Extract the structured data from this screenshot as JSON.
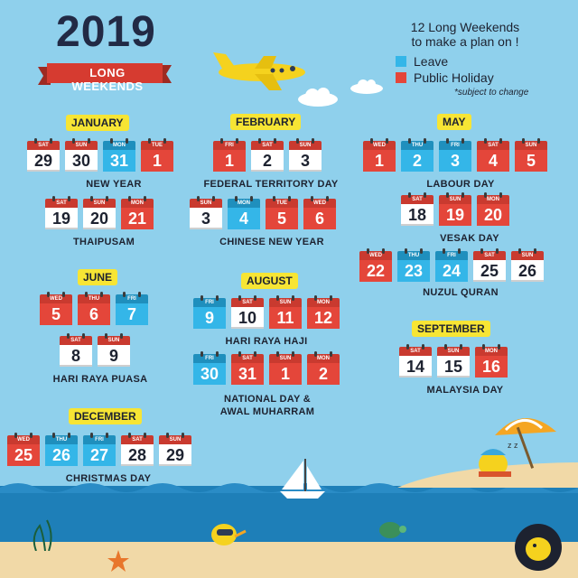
{
  "header": {
    "year": "2019",
    "subtitle": "LONG WEEKENDS"
  },
  "info": {
    "line1": "12 Long Weekends",
    "line2": "to make a plan on !",
    "legend_leave": "Leave",
    "legend_public": "Public Holiday",
    "note": "*subject to change"
  },
  "colors": {
    "leave": "#34b6e8",
    "public_holiday": "#e4463a",
    "weekend": "#ffffff",
    "month_label": "#f7e534"
  },
  "months": {
    "jan": "JANUARY",
    "feb": "FEBRUARY",
    "may": "MAY",
    "jun": "JUNE",
    "aug": "AUGUST",
    "sep": "SEPTEMBER",
    "dec": "DECEMBER"
  },
  "holidays": {
    "new_year": "NEW YEAR",
    "thaipusam": "THAIPUSAM",
    "federal": "FEDERAL TERRITORY DAY",
    "cny": "CHINESE NEW YEAR",
    "labour": "LABOUR DAY",
    "vesak": "VESAK DAY",
    "nuzul": "NUZUL QURAN",
    "hari_raya_puasa": "HARI RAYA PUASA",
    "hari_raya_haji": "HARI RAYA HAJI",
    "national_1": "NATIONAL DAY &",
    "national_2": "AWAL MUHARRAM",
    "malaysia": "MALAYSIA DAY",
    "christmas": "CHRISTMAS DAY"
  },
  "groups": {
    "g1": [
      {
        "d": "SAT",
        "n": "29",
        "t": "W"
      },
      {
        "d": "SUN",
        "n": "30",
        "t": "W"
      },
      {
        "d": "MON",
        "n": "31",
        "t": "L"
      },
      {
        "d": "TUE",
        "n": "1",
        "t": "P"
      }
    ],
    "g2": [
      {
        "d": "SAT",
        "n": "19",
        "t": "W"
      },
      {
        "d": "SUN",
        "n": "20",
        "t": "W"
      },
      {
        "d": "MON",
        "n": "21",
        "t": "P"
      }
    ],
    "g3": [
      {
        "d": "FRI",
        "n": "1",
        "t": "P"
      },
      {
        "d": "SAT",
        "n": "2",
        "t": "W"
      },
      {
        "d": "SUN",
        "n": "3",
        "t": "W"
      }
    ],
    "g4": [
      {
        "d": "SUN",
        "n": "3",
        "t": "W"
      },
      {
        "d": "MON",
        "n": "4",
        "t": "L"
      },
      {
        "d": "TUE",
        "n": "5",
        "t": "P"
      },
      {
        "d": "WED",
        "n": "6",
        "t": "P"
      }
    ],
    "g5": [
      {
        "d": "WED",
        "n": "1",
        "t": "P"
      },
      {
        "d": "THU",
        "n": "2",
        "t": "L"
      },
      {
        "d": "FRI",
        "n": "3",
        "t": "L"
      },
      {
        "d": "SAT",
        "n": "4",
        "t": "P"
      },
      {
        "d": "SUN",
        "n": "5",
        "t": "P"
      }
    ],
    "g6": [
      {
        "d": "SAT",
        "n": "18",
        "t": "W"
      },
      {
        "d": "SUN",
        "n": "19",
        "t": "P"
      },
      {
        "d": "MON",
        "n": "20",
        "t": "P"
      }
    ],
    "g7": [
      {
        "d": "WED",
        "n": "22",
        "t": "P"
      },
      {
        "d": "THU",
        "n": "23",
        "t": "L"
      },
      {
        "d": "FRI",
        "n": "24",
        "t": "L"
      },
      {
        "d": "SAT",
        "n": "25",
        "t": "W"
      },
      {
        "d": "SUN",
        "n": "26",
        "t": "W"
      }
    ],
    "g8": [
      {
        "d": "WED",
        "n": "5",
        "t": "P"
      },
      {
        "d": "THU",
        "n": "6",
        "t": "P"
      },
      {
        "d": "FRI",
        "n": "7",
        "t": "L"
      }
    ],
    "g9": [
      {
        "d": "SAT",
        "n": "8",
        "t": "W"
      },
      {
        "d": "SUN",
        "n": "9",
        "t": "W"
      }
    ],
    "g10": [
      {
        "d": "FRI",
        "n": "9",
        "t": "L"
      },
      {
        "d": "SAT",
        "n": "10",
        "t": "W"
      },
      {
        "d": "SUN",
        "n": "11",
        "t": "P"
      },
      {
        "d": "MON",
        "n": "12",
        "t": "P"
      }
    ],
    "g11": [
      {
        "d": "FRI",
        "n": "30",
        "t": "L"
      },
      {
        "d": "SAT",
        "n": "31",
        "t": "P"
      },
      {
        "d": "SUN",
        "n": "1",
        "t": "P"
      },
      {
        "d": "MON",
        "n": "2",
        "t": "P"
      }
    ],
    "g12": [
      {
        "d": "SAT",
        "n": "14",
        "t": "W"
      },
      {
        "d": "SUN",
        "n": "15",
        "t": "W"
      },
      {
        "d": "MON",
        "n": "16",
        "t": "P"
      }
    ],
    "g13": [
      {
        "d": "WED",
        "n": "25",
        "t": "P"
      },
      {
        "d": "THU",
        "n": "26",
        "t": "L"
      },
      {
        "d": "FRI",
        "n": "27",
        "t": "L"
      },
      {
        "d": "SAT",
        "n": "28",
        "t": "W"
      },
      {
        "d": "SUN",
        "n": "29",
        "t": "W"
      }
    ]
  }
}
